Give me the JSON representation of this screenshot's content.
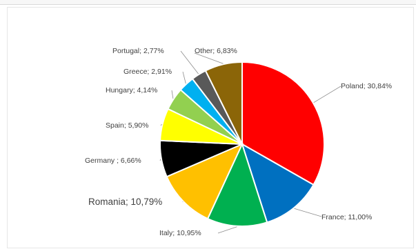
{
  "chart_data": {
    "type": "pie",
    "title": "",
    "slices": [
      {
        "label": "Poland; 30,84%",
        "name": "Poland",
        "value": 30.84,
        "color": "#ff0000"
      },
      {
        "label": "France; 11,00%",
        "name": "France",
        "value": 11.0,
        "color": "#0070c0"
      },
      {
        "label": "Italy; 10,95%",
        "name": "Italy",
        "value": 10.95,
        "color": "#00b050"
      },
      {
        "label": "Romania; 10,79%",
        "name": "Romania",
        "value": 10.79,
        "color": "#ffc000"
      },
      {
        "label": "Germany ; 6,66%",
        "name": "Germany",
        "value": 6.66,
        "color": "#000000"
      },
      {
        "label": "Spain; 5,90%",
        "name": "Spain",
        "value": 5.9,
        "color": "#ffff00"
      },
      {
        "label": "Hungary; 4,14%",
        "name": "Hungary",
        "value": 4.14,
        "color": "#92d050"
      },
      {
        "label": "Greece; 2,91%",
        "name": "Greece",
        "value": 2.91,
        "color": "#00b0f0"
      },
      {
        "label": "Portugal; 2,77%",
        "name": "Portugal",
        "value": 2.77,
        "color": "#595959"
      },
      {
        "label": "Other; 6,83%",
        "name": "Other",
        "value": 6.83,
        "color": "#8b6508"
      }
    ],
    "start": "12 o'clock",
    "direction": "clockwise",
    "legend": "none (data labels outside slices)"
  }
}
